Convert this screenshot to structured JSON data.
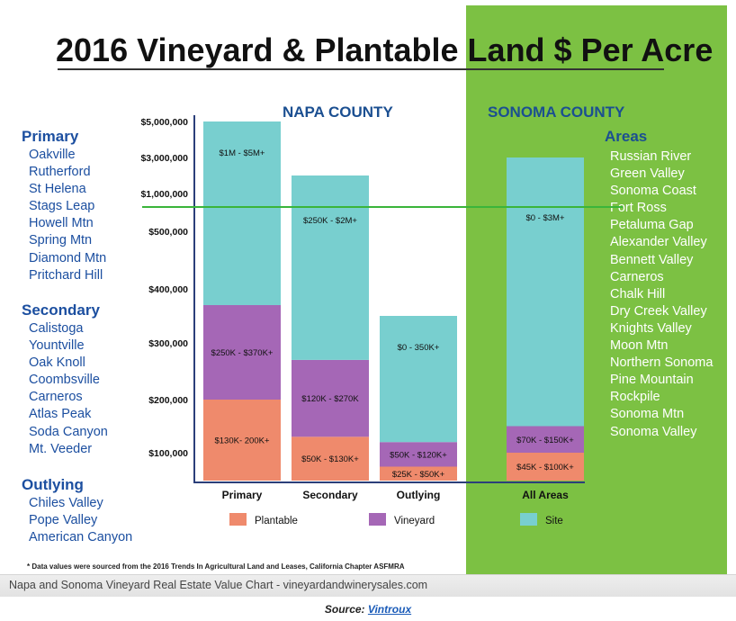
{
  "title": "2016 Vineyard & Plantable Land $ Per Acre",
  "napa_label": "NAPA COUNTY",
  "sonoma_label": "SONOMA COUNTY",
  "colors": {
    "plantable": "#ef8a6c",
    "vineyard": "#a567b6",
    "site": "#78cfcf",
    "divider": "#3ab53a",
    "panel": "#7cc143",
    "list_text": "#1c4fa0"
  },
  "napa_lists": {
    "primary": {
      "header": "Primary",
      "items": [
        "Oakville",
        "Rutherford",
        "St Helena",
        "Stags Leap",
        "Howell Mtn",
        "Spring Mtn",
        "Diamond Mtn",
        "Pritchard Hill"
      ]
    },
    "secondary": {
      "header": "Secondary",
      "items": [
        "Calistoga",
        "Yountville",
        "Oak Knoll",
        "Coombsville",
        "Carneros",
        "Atlas Peak",
        "Soda Canyon",
        "Mt. Veeder"
      ]
    },
    "outlying": {
      "header": "Outlying",
      "items": [
        "Chiles Valley",
        "Pope Valley",
        "American Canyon"
      ]
    }
  },
  "sonoma_areas": {
    "header": "Areas",
    "items": [
      "Russian River",
      "Green Valley",
      "Sonoma Coast",
      "Fort Ross",
      "Petaluma Gap",
      "Alexander Valley",
      "Bennett Valley",
      "Carneros",
      "Chalk Hill",
      "Dry Creek Valley",
      "Knights Valley",
      "Moon Mtn",
      "Northern Sonoma",
      "Pine Mountain",
      "Rockpile",
      "Sonoma Mtn",
      "Sonoma Valley"
    ]
  },
  "chart_data": {
    "type": "bar",
    "stacked": true,
    "scale": "nonlinear (broken) value axis",
    "categories": [
      "Primary",
      "Secondary",
      "Outlying",
      "All Areas"
    ],
    "y_ticks": [
      "$100,000",
      "$200,000",
      "$300,000",
      "$400,000",
      "$500,000",
      "$1,000,000",
      "$3,000,000",
      "$5,000,000"
    ],
    "y_tick_values": [
      100000,
      200000,
      300000,
      400000,
      500000,
      1000000,
      3000000,
      5000000
    ],
    "series": [
      {
        "name": "Plantable",
        "color": "#ef8a6c",
        "ranges": [
          [
            130000,
            200000
          ],
          [
            50000,
            130000
          ],
          [
            25000,
            50000
          ],
          [
            45000,
            100000
          ]
        ],
        "labels": [
          "$130K- 200K+",
          "$50K - $130K+",
          "$25K - $50K+",
          "$45K - $100K+"
        ]
      },
      {
        "name": "Vineyard",
        "color": "#a567b6",
        "ranges": [
          [
            250000,
            370000
          ],
          [
            120000,
            270000
          ],
          [
            50000,
            120000
          ],
          [
            70000,
            150000
          ]
        ],
        "labels": [
          "$250K - $370K+",
          "$120K - $270K",
          "$50K - $120K+",
          "$70K - $150K+"
        ]
      },
      {
        "name": "Site",
        "color": "#78cfcf",
        "ranges": [
          [
            1000000,
            5000000
          ],
          [
            250000,
            2000000
          ],
          [
            0,
            350000
          ],
          [
            0,
            3000000
          ]
        ],
        "labels": [
          "$1M - $5M+",
          "$250K - $2M+",
          "$0 - 350K+",
          "$0 - $3M+"
        ]
      }
    ],
    "segment_tops": [
      [
        200000,
        370000,
        5000000
      ],
      [
        130000,
        270000,
        2000000
      ],
      [
        50000,
        120000,
        350000
      ],
      [
        100000,
        150000,
        3000000
      ]
    ],
    "legend": [
      "Plantable",
      "Vineyard",
      "Site"
    ],
    "legend_position": "bottom"
  },
  "footnote": "* Data values were sourced from the 2016 Trends In Agricultural Land and Leases, California Chapter ASFMRA",
  "caption": "Napa and Sonoma Vineyard Real Estate Value Chart - vineyardandwinerysales.com",
  "source_prefix": "Source: ",
  "source_link": "Vintroux"
}
